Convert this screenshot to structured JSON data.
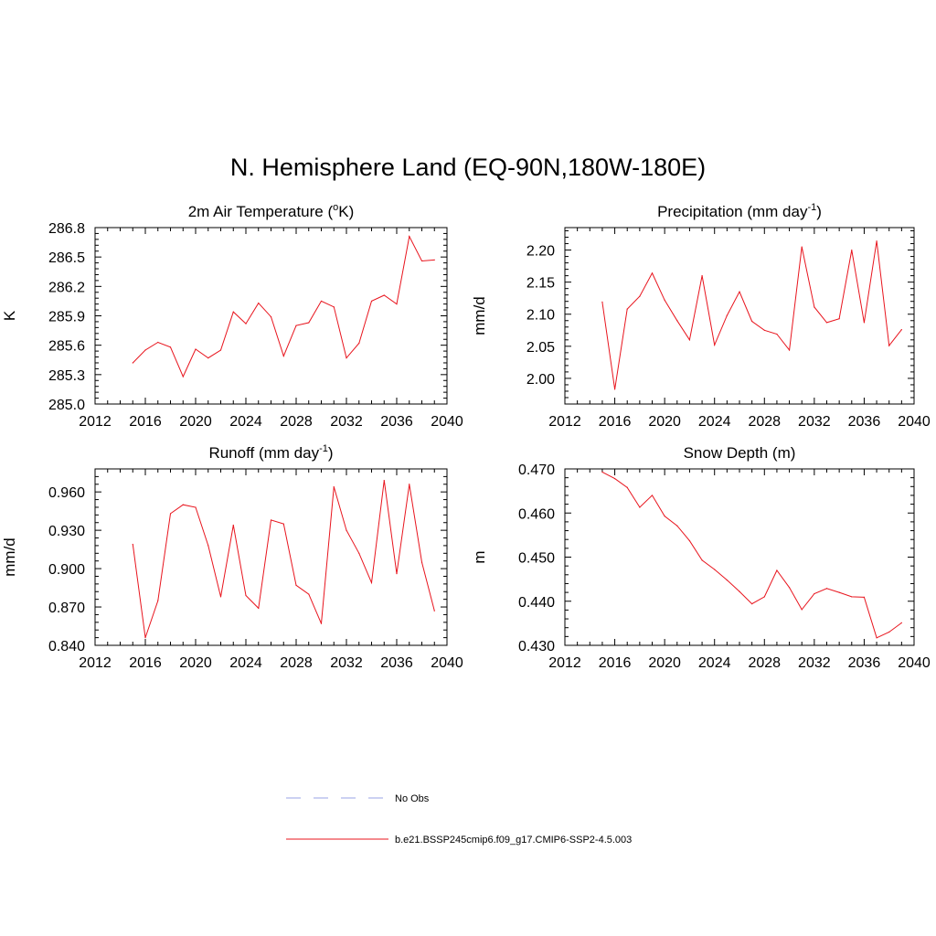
{
  "title": "N. Hemisphere Land (EQ-90N,180W-180E)",
  "colors": {
    "series": "#e8141d",
    "obs": "#9aa3e6",
    "axis": "#000000"
  },
  "legend": {
    "placement": "bottom",
    "entries": [
      {
        "label": "No Obs",
        "style": "dashed",
        "color": "#9aa3e6"
      },
      {
        "label": "b.e21.BSSP245cmip6.f09_g17.CMIP6-SSP2-4.5.003",
        "style": "solid",
        "color": "#e8141d"
      }
    ]
  },
  "chart_data": [
    {
      "type": "line",
      "title": "2m Air Temperature (",
      "title_sup": "o",
      "title_post": "K)",
      "ylabel": "K",
      "xlabel": "",
      "xlim": [
        2012,
        2040
      ],
      "ylim": [
        285.0,
        286.8
      ],
      "xticks": [
        "2012",
        "2016",
        "2020",
        "2024",
        "2028",
        "2032",
        "2036",
        "2040"
      ],
      "yticks": [
        "285.0",
        "285.3",
        "285.6",
        "285.9",
        "286.2",
        "286.5",
        "286.8"
      ],
      "x": [
        2015,
        2016,
        2017,
        2018,
        2019,
        2020,
        2021,
        2022,
        2023,
        2024,
        2025,
        2026,
        2027,
        2028,
        2029,
        2030,
        2031,
        2032,
        2033,
        2034,
        2035,
        2036,
        2037,
        2038,
        2039
      ],
      "values": [
        285.42,
        285.55,
        285.63,
        285.58,
        285.28,
        285.56,
        285.47,
        285.55,
        285.94,
        285.82,
        286.03,
        285.89,
        285.49,
        285.8,
        285.83,
        286.05,
        285.99,
        285.47,
        285.62,
        286.05,
        286.11,
        286.02,
        286.71,
        286.46,
        286.47
      ]
    },
    {
      "type": "line",
      "title": "Precipitation (mm day",
      "title_sup": "-1",
      "title_post": ")",
      "ylabel": "mm/d",
      "xlabel": "",
      "xlim": [
        2012,
        2040
      ],
      "ylim": [
        1.96,
        2.235
      ],
      "xticks": [
        "2012",
        "2016",
        "2020",
        "2024",
        "2028",
        "2032",
        "2036",
        "2040"
      ],
      "yticks": [
        "2.00",
        "2.05",
        "2.10",
        "2.15",
        "2.20"
      ],
      "x": [
        2015,
        2016,
        2017,
        2018,
        2019,
        2020,
        2021,
        2022,
        2023,
        2024,
        2025,
        2026,
        2027,
        2028,
        2029,
        2030,
        2031,
        2032,
        2033,
        2034,
        2035,
        2036,
        2037,
        2038,
        2039
      ],
      "values": [
        2.119,
        1.983,
        2.108,
        2.128,
        2.164,
        2.122,
        2.09,
        2.06,
        2.16,
        2.052,
        2.098,
        2.135,
        2.089,
        2.075,
        2.069,
        2.044,
        2.205,
        2.111,
        2.087,
        2.093,
        2.2,
        2.087,
        2.214,
        2.051,
        2.076
      ]
    },
    {
      "type": "line",
      "title": "Runoff (mm day",
      "title_sup": "-1",
      "title_post": ")",
      "ylabel": "mm/d",
      "xlabel": "",
      "xlim": [
        2012,
        2040
      ],
      "ylim": [
        0.84,
        0.978
      ],
      "xticks": [
        "2012",
        "2016",
        "2020",
        "2024",
        "2028",
        "2032",
        "2036",
        "2040"
      ],
      "yticks": [
        "0.840",
        "0.870",
        "0.900",
        "0.930",
        "0.960"
      ],
      "x": [
        2015,
        2016,
        2017,
        2018,
        2019,
        2020,
        2021,
        2022,
        2023,
        2024,
        2025,
        2026,
        2027,
        2028,
        2029,
        2030,
        2031,
        2032,
        2033,
        2034,
        2035,
        2036,
        2037,
        2038,
        2039
      ],
      "values": [
        0.919,
        0.846,
        0.875,
        0.943,
        0.95,
        0.948,
        0.918,
        0.878,
        0.934,
        0.879,
        0.869,
        0.938,
        0.935,
        0.887,
        0.88,
        0.857,
        0.964,
        0.93,
        0.912,
        0.889,
        0.969,
        0.896,
        0.966,
        0.905,
        0.867
      ]
    },
    {
      "type": "line",
      "title": "Snow Depth (m)",
      "title_sup": "",
      "title_post": "",
      "ylabel": "m",
      "xlabel": "",
      "xlim": [
        2012,
        2040
      ],
      "ylim": [
        0.43,
        0.47
      ],
      "xticks": [
        "2012",
        "2016",
        "2020",
        "2024",
        "2028",
        "2032",
        "2036",
        "2040"
      ],
      "yticks": [
        "0.430",
        "0.440",
        "0.450",
        "0.460",
        "0.470"
      ],
      "x": [
        2015,
        2016,
        2017,
        2018,
        2019,
        2020,
        2021,
        2022,
        2023,
        2024,
        2025,
        2026,
        2027,
        2028,
        2029,
        2030,
        2031,
        2032,
        2033,
        2034,
        2035,
        2036,
        2037,
        2038,
        2039
      ],
      "values": [
        0.4693,
        0.4678,
        0.4658,
        0.4613,
        0.464,
        0.4593,
        0.4571,
        0.4537,
        0.4493,
        0.4472,
        0.4448,
        0.4422,
        0.4394,
        0.441,
        0.447,
        0.4431,
        0.4381,
        0.4417,
        0.4429,
        0.442,
        0.441,
        0.4409,
        0.4317,
        0.433,
        0.4351
      ]
    }
  ]
}
